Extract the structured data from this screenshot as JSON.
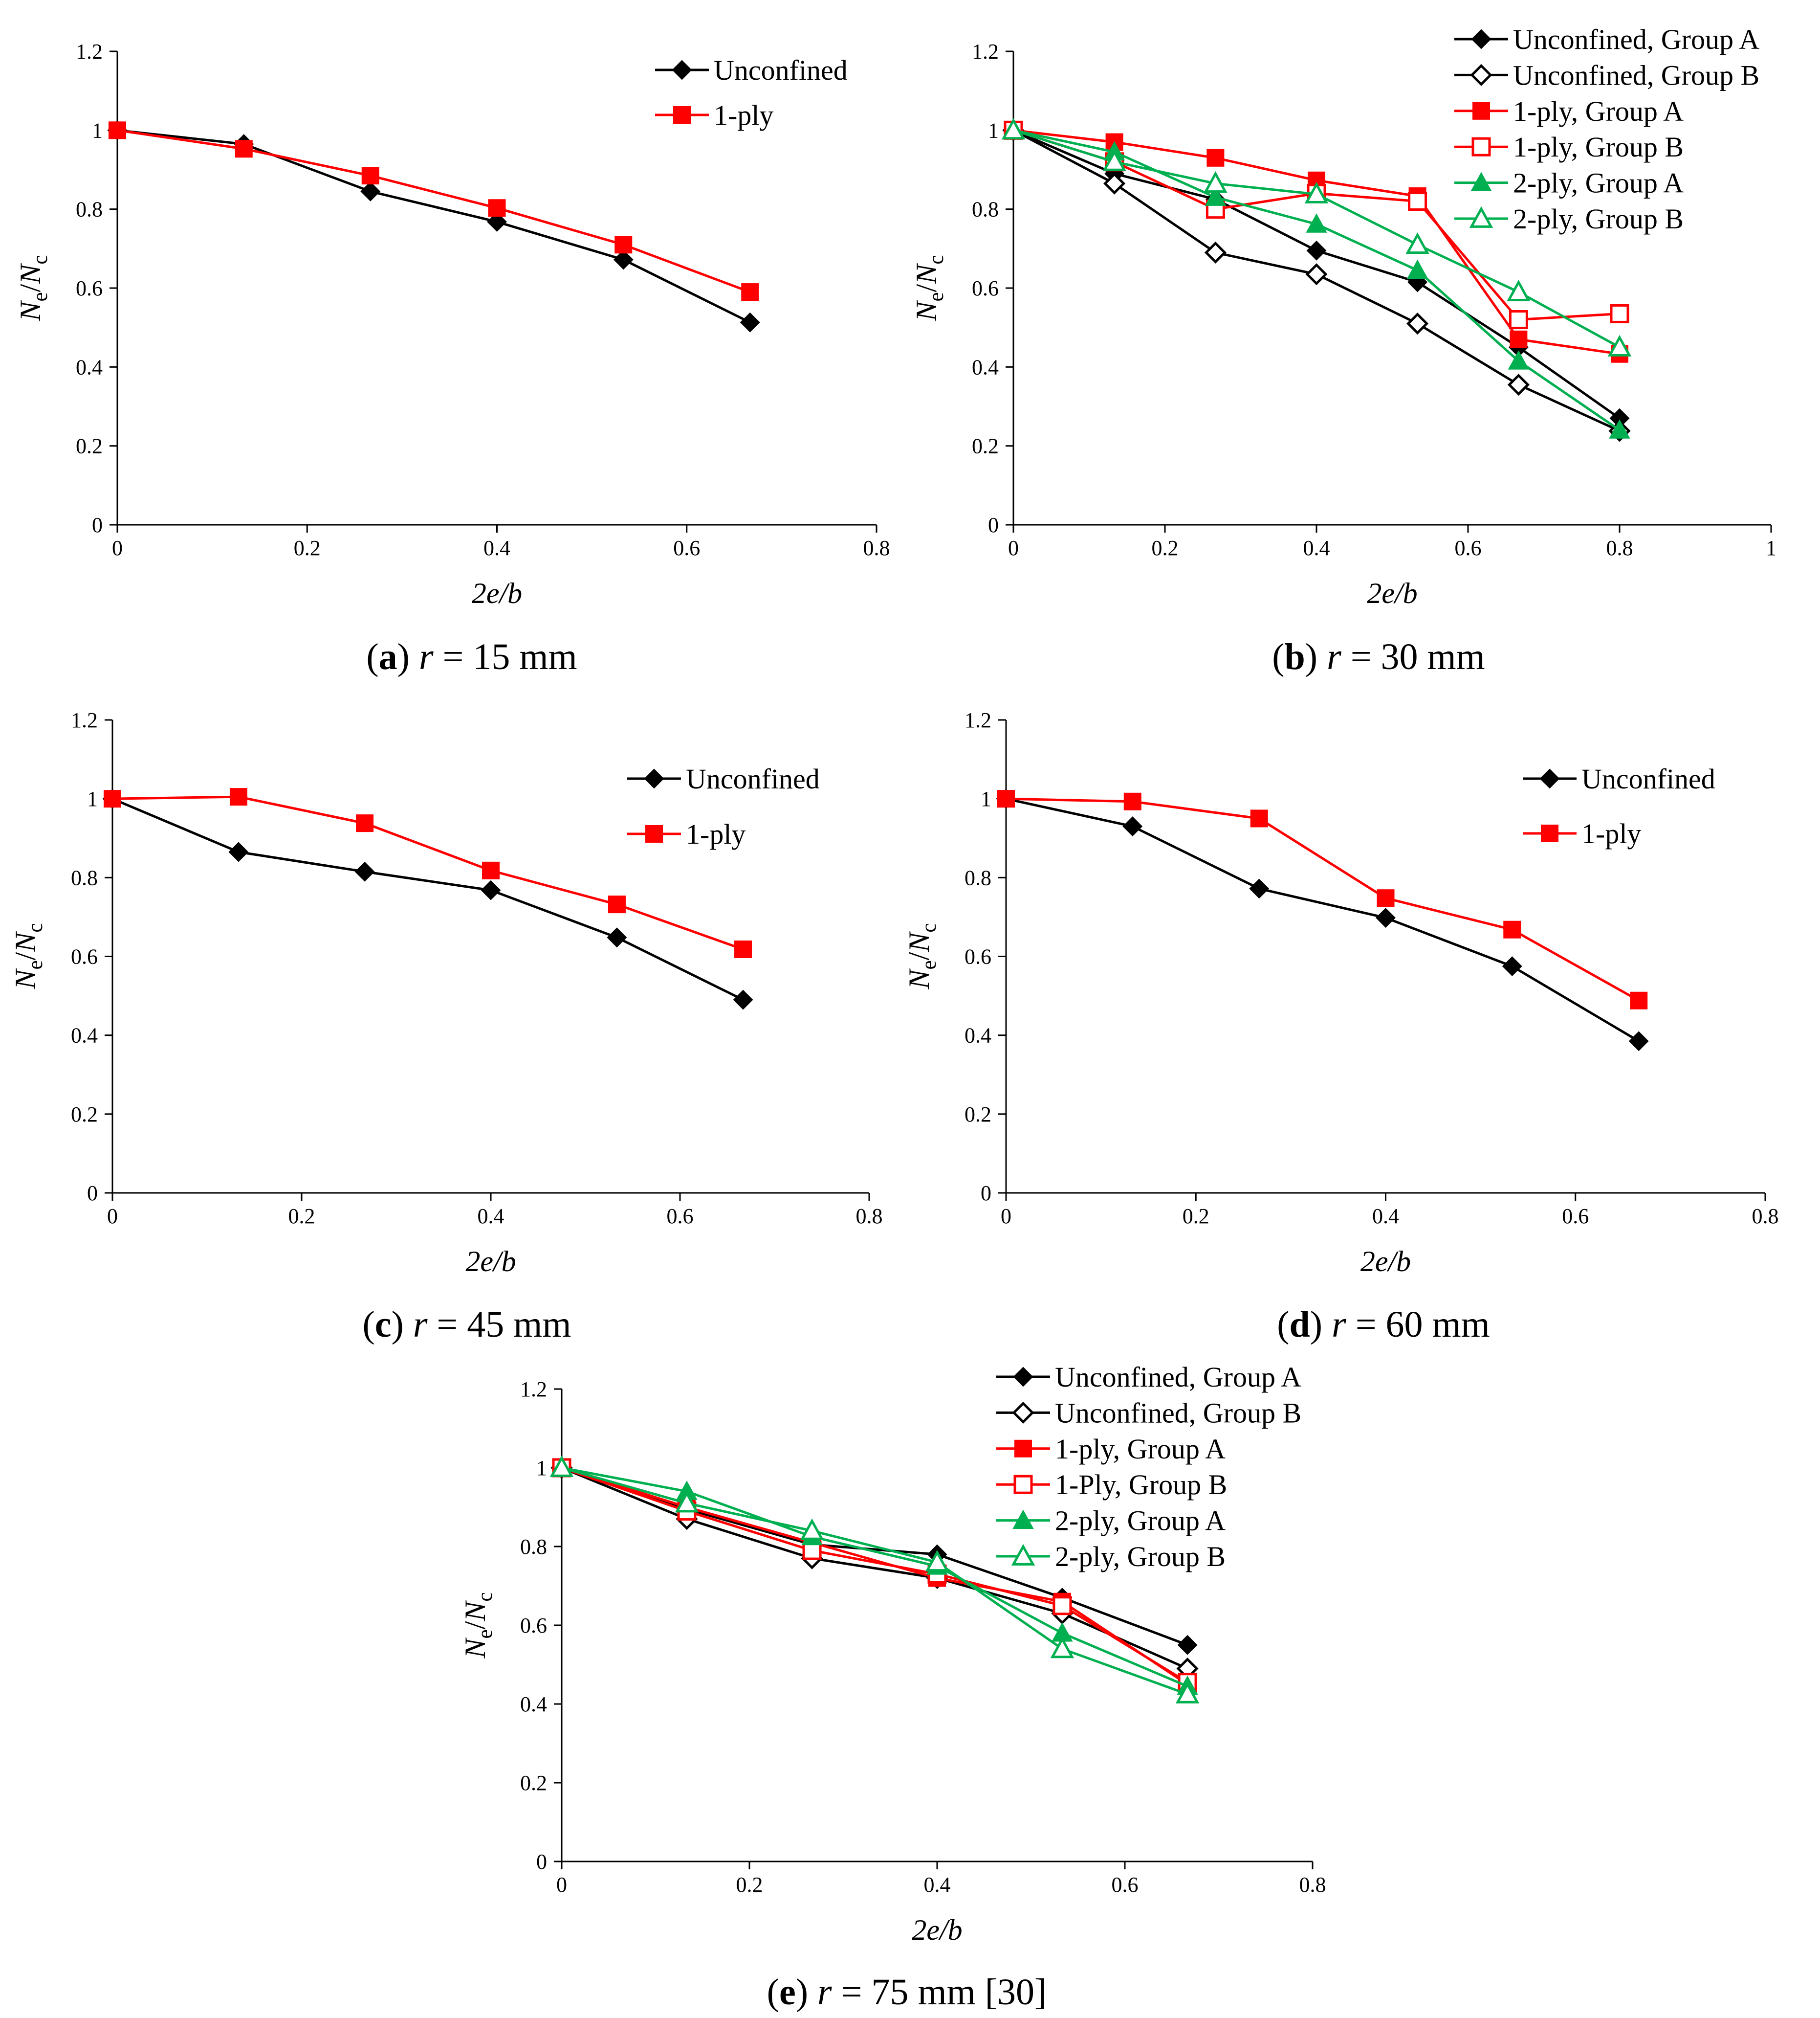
{
  "chart_data": [
    {
      "id": "a",
      "type": "line",
      "panel_label": "a",
      "caption_var": "r",
      "caption_rest": " = 15 mm",
      "xlabel": "2e/b",
      "ylabel": "Ne/Nc",
      "xlim": [
        0,
        0.8
      ],
      "ylim": [
        0,
        1.2
      ],
      "xticks": [
        0,
        0.2,
        0.4,
        0.6,
        0.8
      ],
      "xtick_labels": [
        "0",
        "0.2",
        "0.4",
        "0.6",
        "0.8"
      ],
      "yticks": [
        0,
        0.2,
        0.4,
        0.6,
        0.8,
        1.0,
        1.2
      ],
      "ytick_labels": [
        "0",
        "0.2",
        "0.4",
        "0.6",
        "0.8",
        "1",
        "1.2"
      ],
      "series": [
        {
          "name": "Unconfined",
          "color": "#000000",
          "marker": "diamond",
          "filled": true,
          "x": [
            0,
            0.1333,
            0.2667,
            0.4,
            0.5333,
            0.6667
          ],
          "y": [
            1.0,
            0.965,
            0.845,
            0.768,
            0.672,
            0.513
          ]
        },
        {
          "name": "1-ply",
          "color": "#ff0000",
          "marker": "square",
          "filled": true,
          "x": [
            0,
            0.1333,
            0.2667,
            0.4,
            0.5333,
            0.6667
          ],
          "y": [
            1.0,
            0.953,
            0.885,
            0.803,
            0.71,
            0.59
          ]
        }
      ]
    },
    {
      "id": "b",
      "type": "line",
      "panel_label": "b",
      "caption_var": "r",
      "caption_rest": " = 30 mm",
      "xlabel": "2e/b",
      "ylabel": "Ne/Nc",
      "xlim": [
        0,
        1.0
      ],
      "ylim": [
        0,
        1.2
      ],
      "xticks": [
        0,
        0.2,
        0.4,
        0.6,
        0.8,
        1.0
      ],
      "xtick_labels": [
        "0",
        "0.2",
        "0.4",
        "0.6",
        "0.8",
        "1"
      ],
      "yticks": [
        0,
        0.2,
        0.4,
        0.6,
        0.8,
        1.0,
        1.2
      ],
      "ytick_labels": [
        "0",
        "0.2",
        "0.4",
        "0.6",
        "0.8",
        "1",
        "1.2"
      ],
      "series": [
        {
          "name": "Unconfined, Group A",
          "color": "#000000",
          "marker": "diamond",
          "filled": true,
          "x": [
            0,
            0.1333,
            0.2667,
            0.4,
            0.5333,
            0.6667,
            0.8
          ],
          "y": [
            1.0,
            0.89,
            0.825,
            0.695,
            0.615,
            0.45,
            0.27
          ]
        },
        {
          "name": "Unconfined, Group B",
          "color": "#000000",
          "marker": "diamond",
          "filled": false,
          "x": [
            0,
            0.1333,
            0.2667,
            0.4,
            0.5333,
            0.6667,
            0.8
          ],
          "y": [
            1.0,
            0.865,
            0.69,
            0.635,
            0.51,
            0.355,
            0.238
          ]
        },
        {
          "name": "1-ply, Group A",
          "color": "#ff0000",
          "marker": "square",
          "filled": true,
          "x": [
            0,
            0.1333,
            0.2667,
            0.4,
            0.5333,
            0.6667,
            0.8
          ],
          "y": [
            1.0,
            0.97,
            0.93,
            0.873,
            0.833,
            0.47,
            0.433
          ]
        },
        {
          "name": "1-ply, Group B",
          "color": "#ff0000",
          "marker": "square",
          "filled": false,
          "x": [
            0,
            0.1333,
            0.2667,
            0.4,
            0.5333,
            0.6667,
            0.8
          ],
          "y": [
            1.0,
            0.92,
            0.8,
            0.84,
            0.82,
            0.52,
            0.535
          ]
        },
        {
          "name": "2-ply, Group A",
          "color": "#00b050",
          "marker": "triangle",
          "filled": true,
          "x": [
            0,
            0.1333,
            0.2667,
            0.4,
            0.5333,
            0.6667,
            0.8
          ],
          "y": [
            1.0,
            0.945,
            0.83,
            0.762,
            0.645,
            0.415,
            0.24
          ]
        },
        {
          "name": "2-ply, Group B",
          "color": "#00b050",
          "marker": "triangle",
          "filled": false,
          "x": [
            0,
            0.1333,
            0.2667,
            0.4,
            0.5333,
            0.6667,
            0.8
          ],
          "y": [
            1.0,
            0.92,
            0.865,
            0.838,
            0.71,
            0.59,
            0.45
          ]
        }
      ]
    },
    {
      "id": "c",
      "type": "line",
      "panel_label": "c",
      "caption_var": "r",
      "caption_rest": " = 45 mm",
      "xlabel": "2e/b",
      "ylabel": "Ne/Nc",
      "xlim": [
        0,
        0.8
      ],
      "ylim": [
        0,
        1.2
      ],
      "xticks": [
        0,
        0.2,
        0.4,
        0.6,
        0.8
      ],
      "xtick_labels": [
        "0",
        "0.2",
        "0.4",
        "0.6",
        "0.8"
      ],
      "yticks": [
        0,
        0.2,
        0.4,
        0.6,
        0.8,
        1.0,
        1.2
      ],
      "ytick_labels": [
        "0",
        "0.2",
        "0.4",
        "0.6",
        "0.8",
        "1",
        "1.2"
      ],
      "series": [
        {
          "name": "Unconfined",
          "color": "#000000",
          "marker": "diamond",
          "filled": true,
          "x": [
            0,
            0.1333,
            0.2667,
            0.4,
            0.5333,
            0.6667
          ],
          "y": [
            1.0,
            0.865,
            0.815,
            0.768,
            0.648,
            0.49
          ]
        },
        {
          "name": "1-ply",
          "color": "#ff0000",
          "marker": "square",
          "filled": true,
          "x": [
            0,
            0.1333,
            0.2667,
            0.4,
            0.5333,
            0.6667
          ],
          "y": [
            1.0,
            1.005,
            0.938,
            0.818,
            0.732,
            0.618
          ]
        }
      ]
    },
    {
      "id": "d",
      "type": "line",
      "panel_label": "d",
      "caption_var": "r",
      "caption_rest": " = 60 mm",
      "xlabel": "2e/b",
      "ylabel": "Ne/Nc",
      "xlim": [
        0,
        0.8
      ],
      "ylim": [
        0,
        1.2
      ],
      "xticks": [
        0,
        0.2,
        0.4,
        0.6,
        0.8
      ],
      "xtick_labels": [
        "0",
        "0.2",
        "0.4",
        "0.6",
        "0.8"
      ],
      "yticks": [
        0,
        0.2,
        0.4,
        0.6,
        0.8,
        1.0,
        1.2
      ],
      "ytick_labels": [
        "0",
        "0.2",
        "0.4",
        "0.6",
        "0.8",
        "1",
        "1.2"
      ],
      "series": [
        {
          "name": "Unconfined",
          "color": "#000000",
          "marker": "diamond",
          "filled": true,
          "x": [
            0,
            0.1333,
            0.2667,
            0.4,
            0.5333,
            0.6667
          ],
          "y": [
            1.0,
            0.93,
            0.772,
            0.698,
            0.575,
            0.385
          ]
        },
        {
          "name": "1-ply",
          "color": "#ff0000",
          "marker": "square",
          "filled": true,
          "x": [
            0,
            0.1333,
            0.2667,
            0.4,
            0.5333,
            0.6667
          ],
          "y": [
            1.0,
            0.993,
            0.95,
            0.748,
            0.668,
            0.488
          ]
        }
      ]
    },
    {
      "id": "e",
      "type": "line",
      "panel_label": "e",
      "caption_var": "r",
      "caption_rest": " = 75 mm [30]",
      "xlabel": "2e/b",
      "ylabel": "Ne/Nc",
      "xlim": [
        0,
        0.8
      ],
      "ylim": [
        0,
        1.2
      ],
      "xticks": [
        0,
        0.2,
        0.4,
        0.6,
        0.8
      ],
      "xtick_labels": [
        "0",
        "0.2",
        "0.4",
        "0.6",
        "0.8"
      ],
      "yticks": [
        0,
        0.2,
        0.4,
        0.6,
        0.8,
        1.0,
        1.2
      ],
      "ytick_labels": [
        "0",
        "0.2",
        "0.4",
        "0.6",
        "0.8",
        "1",
        "1.2"
      ],
      "series": [
        {
          "name": "Unconfined, Group A",
          "color": "#000000",
          "marker": "diamond",
          "filled": true,
          "x": [
            0,
            0.1333,
            0.2667,
            0.4,
            0.5333,
            0.6667
          ],
          "y": [
            1.0,
            0.895,
            0.805,
            0.78,
            0.67,
            0.55
          ]
        },
        {
          "name": "Unconfined, Group B",
          "color": "#000000",
          "marker": "diamond",
          "filled": false,
          "x": [
            0,
            0.1333,
            0.2667,
            0.4,
            0.5333,
            0.6667
          ],
          "y": [
            1.0,
            0.87,
            0.77,
            0.72,
            0.63,
            0.49
          ]
        },
        {
          "name": "1-ply, Group A",
          "color": "#ff0000",
          "marker": "square",
          "filled": true,
          "x": [
            0,
            0.1333,
            0.2667,
            0.4,
            0.5333,
            0.6667
          ],
          "y": [
            1.0,
            0.9,
            0.81,
            0.72,
            0.66,
            0.45
          ]
        },
        {
          "name": "1-Ply, Group B",
          "color": "#ff0000",
          "marker": "square",
          "filled": false,
          "x": [
            0,
            0.1333,
            0.2667,
            0.4,
            0.5333,
            0.6667
          ],
          "y": [
            1.0,
            0.89,
            0.79,
            0.73,
            0.65,
            0.455
          ]
        },
        {
          "name": "2-ply, Group A",
          "color": "#00b050",
          "marker": "triangle",
          "filled": true,
          "x": [
            0,
            0.1333,
            0.2667,
            0.4,
            0.5333,
            0.6667
          ],
          "y": [
            1.0,
            0.94,
            0.825,
            0.75,
            0.58,
            0.445
          ]
        },
        {
          "name": "2-ply, Group B",
          "color": "#00b050",
          "marker": "triangle",
          "filled": false,
          "x": [
            0,
            0.1333,
            0.2667,
            0.4,
            0.5333,
            0.6667
          ],
          "y": [
            1.0,
            0.91,
            0.84,
            0.76,
            0.54,
            0.425
          ]
        }
      ]
    }
  ]
}
